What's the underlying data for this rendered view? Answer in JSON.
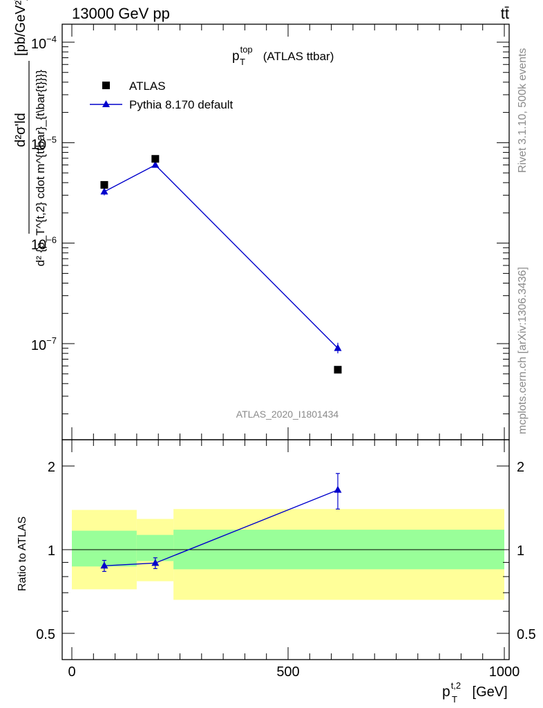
{
  "header": {
    "left": "13000 GeV pp",
    "right": "tt̄"
  },
  "colors": {
    "atlas": "#000000",
    "pythia": "#0000cc",
    "band_outer": "#ffff99",
    "band_inner": "#99ff99",
    "side_text": "#8a8a8a"
  },
  "side_labels": {
    "rivet": "Rivet 3.1.10,  500k events",
    "mcplots": "mcplots.cern.ch [arXiv:1306.3436]"
  },
  "chart_data": [
    {
      "type": "scatter",
      "panel": "main",
      "title": {
        "base": "p",
        "sup": "top",
        "sub": "T",
        "rest": " (ATLAS ttbar)"
      },
      "analysis_label": "ATLAS_2020_I1801434",
      "ylabel": {
        "num": "d²σ'ld",
        "den": "d² {p_T^{t,2} cdot m^{ttbar}_{t\\bar{t}}}}",
        "unit": "[pb/GeV²]"
      },
      "yscale": "log",
      "ylim": [
        2e-08,
        0.00015
      ],
      "xlim": [
        -25,
        1000
      ],
      "ytick_labels": [
        {
          "value": 1e-07,
          "base": "10",
          "exp": "−7"
        },
        {
          "value": 1e-06,
          "base": "10",
          "exp": "−6"
        },
        {
          "value": 1e-05,
          "base": "10",
          "exp": "−5"
        },
        {
          "value": 0.0001,
          "base": "10",
          "exp": "−4"
        }
      ],
      "legend": {
        "position": "top-left",
        "entries": [
          "ATLAS",
          "Pythia 8.170 default"
        ]
      },
      "series": [
        {
          "name": "ATLAS",
          "marker": "square",
          "x": [
            75,
            193,
            615
          ],
          "y": [
            3.8e-06,
            6.9e-06,
            5.5e-08
          ]
        },
        {
          "name": "Pythia 8.170 default",
          "marker": "triangle",
          "x": [
            75,
            193,
            615
          ],
          "y": [
            3.25e-06,
            6e-06,
            9e-08
          ],
          "yerr_lo": [
            2.6e-07,
            2.8e-07,
            1e-08
          ],
          "yerr_hi": [
            2.6e-07,
            2.8e-07,
            1.2e-08
          ]
        }
      ]
    },
    {
      "type": "line",
      "panel": "ratio",
      "ylabel": "Ratio to ATLAS",
      "xlabel": {
        "base": "p",
        "sup": "t,2",
        "sub": "T",
        "unit": " [GeV]"
      },
      "yscale": "log",
      "ylim": [
        0.42,
        2.35
      ],
      "xlim": [
        -25,
        1000
      ],
      "ytick_labels": [
        "0.5",
        "1",
        "2"
      ],
      "ytick_values": [
        0.5,
        1,
        2
      ],
      "xtick_labels": [
        "0",
        "500",
        "1000"
      ],
      "xtick_values": [
        0,
        500,
        1000
      ],
      "reference_line": 1,
      "bands": [
        {
          "x_from": 0,
          "x_to": 150,
          "outer": [
            0.72,
            1.39
          ],
          "inner": [
            0.87,
            1.17
          ]
        },
        {
          "x_from": 150,
          "x_to": 235,
          "outer": [
            0.77,
            1.29
          ],
          "inner": [
            0.91,
            1.13
          ]
        },
        {
          "x_from": 235,
          "x_to": 1000,
          "outer": [
            0.66,
            1.4
          ],
          "inner": [
            0.85,
            1.18
          ]
        }
      ],
      "series": [
        {
          "name": "Pythia 8.170 default",
          "x": [
            75,
            193,
            615
          ],
          "y": [
            0.875,
            0.895,
            1.64
          ],
          "yerr_lo": [
            0.04,
            0.04,
            0.24
          ],
          "yerr_hi": [
            0.04,
            0.04,
            0.24
          ]
        }
      ]
    }
  ]
}
